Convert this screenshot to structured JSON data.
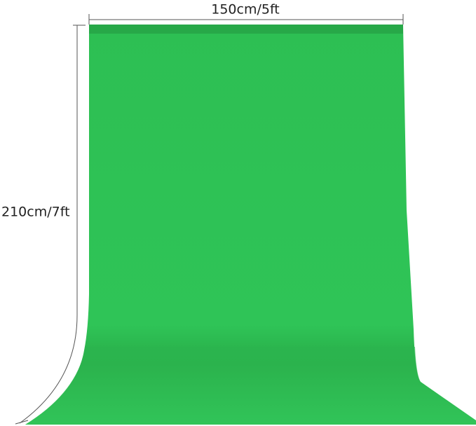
{
  "labels": {
    "width": "150cm/5ft",
    "height": "210cm/7ft"
  }
}
